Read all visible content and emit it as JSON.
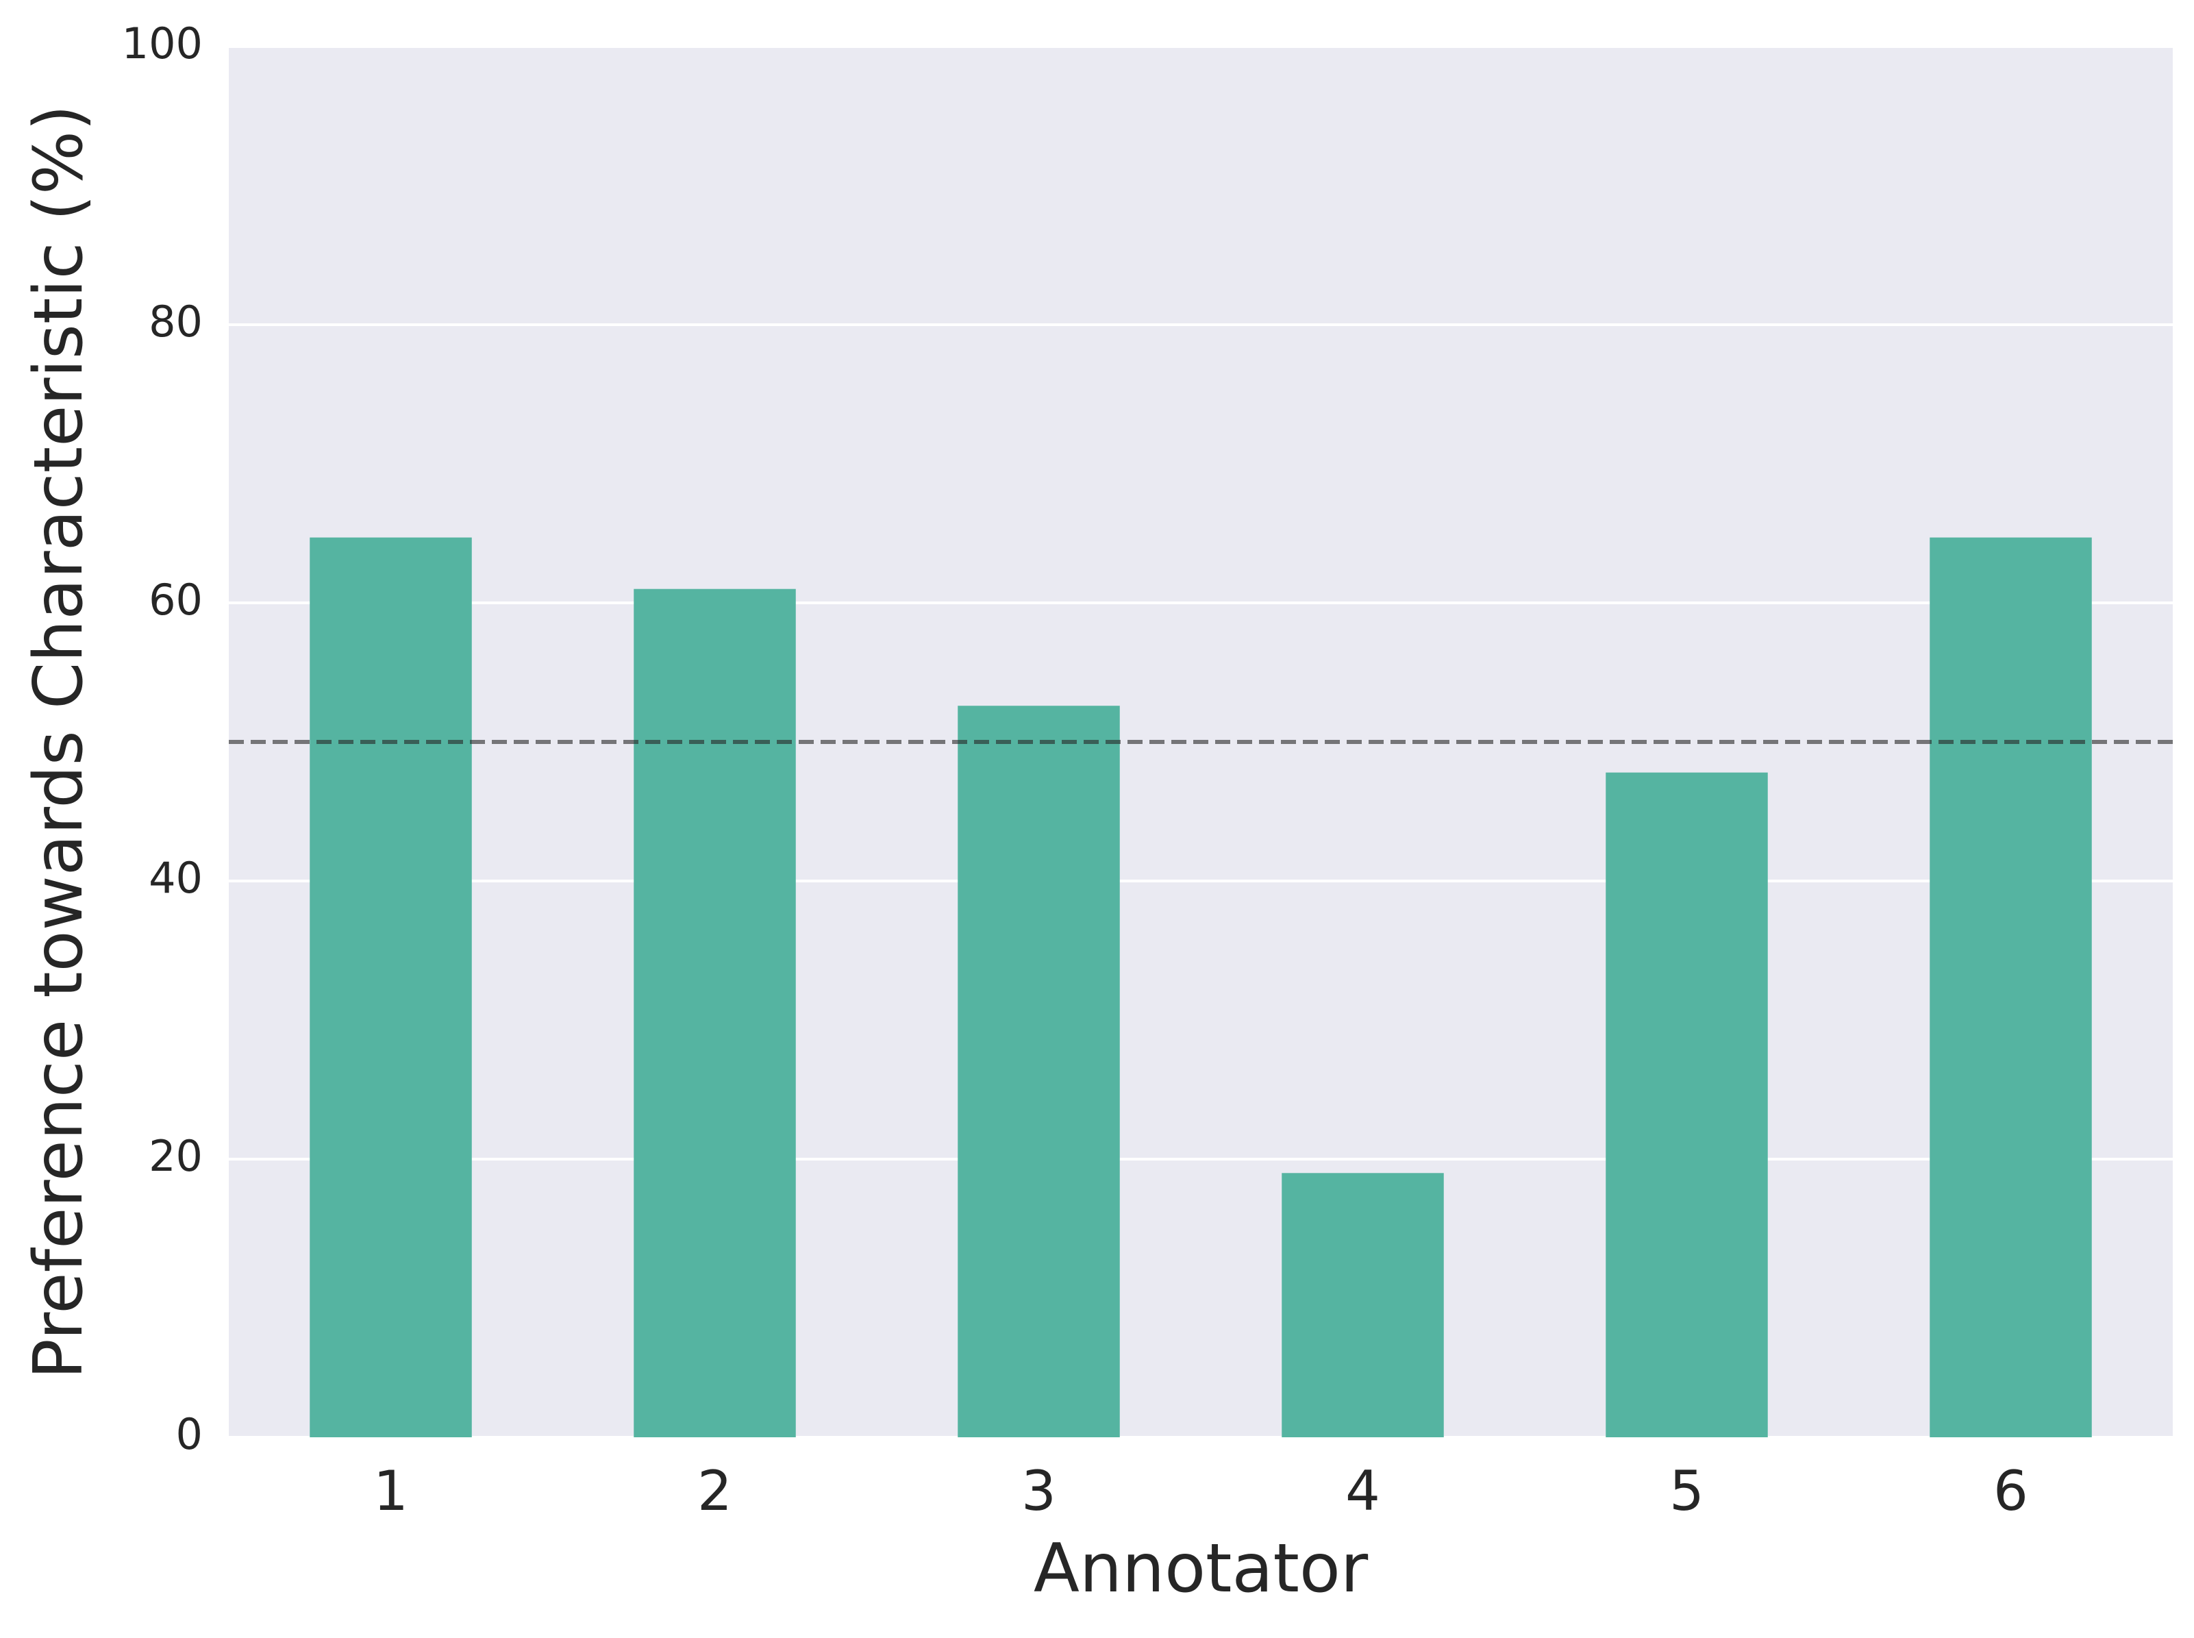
{
  "chart_data": {
    "type": "bar",
    "x_label": "Annotator",
    "y_label": "Preference towards Characteristic (%)",
    "categories": [
      "1",
      "2",
      "3",
      "4",
      "5",
      "6"
    ],
    "values": [
      64.7,
      61.0,
      52.6,
      19.0,
      47.8,
      64.7
    ],
    "color": "#55b4a1",
    "ylim": [
      0,
      100
    ],
    "yticks": [
      0,
      20,
      40,
      60,
      80,
      100
    ],
    "grid": true,
    "reference_line": 50
  }
}
